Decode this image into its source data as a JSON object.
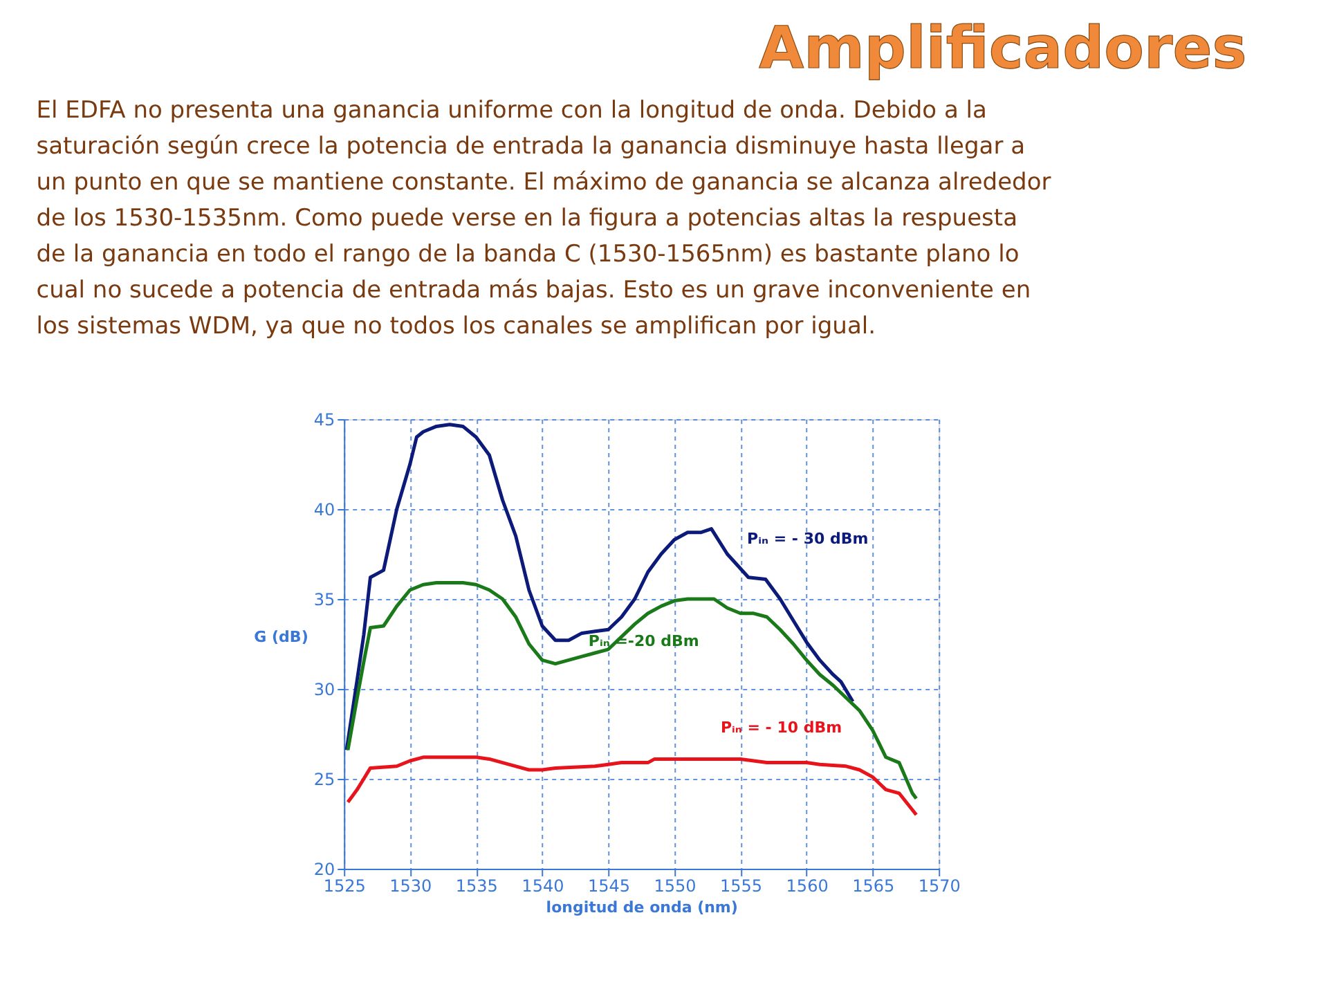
{
  "chart_data": {
    "type": "line",
    "title": "Amplificadores",
    "subtitle": "El EDFA no presenta una ganancia uniforme con la longitud de onda. Debido a la saturación según crece la potencia de entrada la ganancia disminuye hasta llegar a un punto en que se mantiene constante. El máximo de ganancia se alcanza alrededor de los 1530-1535nm. Como puede verse en la figura a potencias altas la respuesta de la ganancia en todo el rango de la banda C (1530-1565nm) es bastante plano lo cual no sucede a potencia de entrada más bajas. Esto es un grave inconveniente en los sistemas WDM, ya que no todos los canales se amplifican por igual.",
    "xlabel": "longitud de onda (nm)",
    "ylabel": "G (dB)",
    "xlim": [
      1525,
      1570
    ],
    "xticks": [
      1525,
      1530,
      1535,
      1540,
      1545,
      1550,
      1555,
      1560,
      1565,
      1570
    ],
    "ylim": [
      20,
      45
    ],
    "yticks": [
      20,
      25,
      30,
      35,
      40,
      45
    ],
    "grid": true,
    "legend": false,
    "marker": "none",
    "line_style": "solid",
    "series": [
      {
        "name": "Pᵢₙ = - 30 dBm",
        "color": "#0c1a7a",
        "x": [
          1525.2,
          1526,
          1526.5,
          1527,
          1527.5,
          1528,
          1529,
          1530,
          1530.5,
          1531,
          1532,
          1533,
          1534,
          1535,
          1536,
          1537,
          1538,
          1539,
          1540,
          1541,
          1542,
          1543,
          1544,
          1545,
          1546,
          1547,
          1548,
          1549,
          1550,
          1551,
          1552,
          1552.8,
          1554,
          1555.6,
          1556.9,
          1558,
          1559,
          1560,
          1561,
          1562,
          1562.6,
          1563.5
        ],
        "values": [
          26.6,
          30.5,
          33,
          36.2,
          36.4,
          36.6,
          40,
          42.5,
          44,
          44.3,
          44.6,
          44.7,
          44.6,
          44,
          43,
          40.5,
          38.5,
          35.5,
          33.5,
          32.7,
          32.7,
          33.1,
          33.2,
          33.3,
          34,
          35,
          36.5,
          37.5,
          38.3,
          38.7,
          38.7,
          38.9,
          37.5,
          36.2,
          36.1,
          35,
          33.8,
          32.6,
          31.6,
          30.8,
          30.4,
          29.3
        ]
      },
      {
        "name": "Pᵢₙ =-20 dBm",
        "color": "#1a7a1a",
        "x": [
          1525.3,
          1526,
          1526.5,
          1527,
          1528,
          1529,
          1530,
          1531,
          1532,
          1534,
          1535,
          1536,
          1537,
          1538,
          1539,
          1540,
          1541,
          1542,
          1543,
          1544,
          1545,
          1546,
          1547,
          1548,
          1549,
          1550,
          1551,
          1552,
          1553,
          1554,
          1555,
          1556,
          1557,
          1558,
          1559,
          1560,
          1561,
          1562,
          1563,
          1564,
          1565,
          1566,
          1567,
          1568,
          1568.3
        ],
        "values": [
          26.6,
          29.5,
          31.5,
          33.4,
          33.5,
          34.6,
          35.5,
          35.8,
          35.9,
          35.9,
          35.8,
          35.5,
          35,
          34,
          32.5,
          31.6,
          31.4,
          31.6,
          31.8,
          32,
          32.2,
          32.9,
          33.6,
          34.2,
          34.6,
          34.9,
          35,
          35,
          35,
          34.5,
          34.2,
          34.2,
          34,
          33.3,
          32.5,
          31.6,
          30.8,
          30.2,
          29.5,
          28.8,
          27.7,
          26.2,
          25.9,
          24.2,
          23.9
        ]
      },
      {
        "name": "Pᵢₙ = - 10 dBm",
        "color": "#e8141c",
        "x": [
          1525.3,
          1526,
          1526.5,
          1527,
          1529,
          1530,
          1531,
          1535,
          1536,
          1537,
          1539,
          1540,
          1541,
          1544,
          1545,
          1546,
          1548,
          1548.5,
          1555,
          1556,
          1557,
          1560,
          1561,
          1563,
          1564,
          1565,
          1566,
          1567,
          1568.3
        ],
        "values": [
          23.7,
          24.4,
          25,
          25.6,
          25.7,
          26,
          26.2,
          26.2,
          26.1,
          25.9,
          25.5,
          25.5,
          25.6,
          25.7,
          25.8,
          25.9,
          25.9,
          26.1,
          26.1,
          26.0,
          25.9,
          25.9,
          25.8,
          25.7,
          25.5,
          25.1,
          24.4,
          24.2,
          23.0
        ]
      }
    ]
  }
}
